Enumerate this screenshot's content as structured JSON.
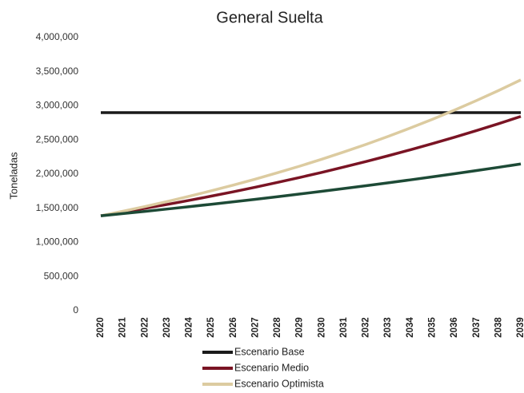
{
  "chart_data": {
    "type": "line",
    "title": "General Suelta",
    "y_label": "Toneladas",
    "categories": [
      "2020",
      "2021",
      "2022",
      "2023",
      "2024",
      "2025",
      "2026",
      "2027",
      "2028",
      "2029",
      "2030",
      "2031",
      "2032",
      "2033",
      "2034",
      "2035",
      "2036",
      "2037",
      "2038",
      "2039"
    ],
    "series": [
      {
        "name": "Escenario Base",
        "color": "#1a1a1a",
        "values": [
          2900000,
          2900000,
          2900000,
          2900000,
          2900000,
          2900000,
          2900000,
          2900000,
          2900000,
          2900000,
          2900000,
          2900000,
          2900000,
          2900000,
          2900000,
          2900000,
          2900000,
          2900000,
          2900000,
          2900000
        ]
      },
      {
        "name": "Escenario Medio",
        "color": "#7a1424",
        "values": [
          1390000,
          1443000,
          1499000,
          1556000,
          1616000,
          1678000,
          1742000,
          1809000,
          1879000,
          1951000,
          2026000,
          2104000,
          2185000,
          2269000,
          2356000,
          2446000,
          2540000,
          2638000,
          2739000,
          2845000
        ]
      },
      {
        "name": "Escenario Optimista",
        "color": "#dccba0",
        "values": [
          1390000,
          1457000,
          1526000,
          1599000,
          1676000,
          1756000,
          1840000,
          1928000,
          2021000,
          2117000,
          2219000,
          2325000,
          2436000,
          2553000,
          2675000,
          2803000,
          2937000,
          3078000,
          3225000,
          3380000
        ]
      },
      {
        "color": "#1d4a36",
        "values": [
          1390000,
          1422000,
          1455000,
          1489000,
          1524000,
          1559000,
          1595000,
          1632000,
          1670000,
          1709000,
          1748000,
          1789000,
          1830000,
          1873000,
          1916000,
          1961000,
          2006000,
          2053000,
          2100000,
          2149000
        ]
      }
    ],
    "ylim": [
      0,
      4000000
    ],
    "yticks": [
      0,
      {
        "value": 500000,
        "label": "500,000"
      },
      {
        "value": 1000000,
        "label": "1,000,000"
      },
      {
        "value": 1500000,
        "label": "1,500,000"
      },
      {
        "value": 2000000,
        "label": "2,000,000"
      },
      {
        "value": 2500000,
        "label": "2,500,000"
      },
      {
        "value": 3000000,
        "label": "3,000,000"
      },
      {
        "value": 3500000,
        "label": "3,500,000"
      },
      {
        "value": 4000000,
        "label": "4,000,000"
      }
    ],
    "legend": "bottom"
  }
}
